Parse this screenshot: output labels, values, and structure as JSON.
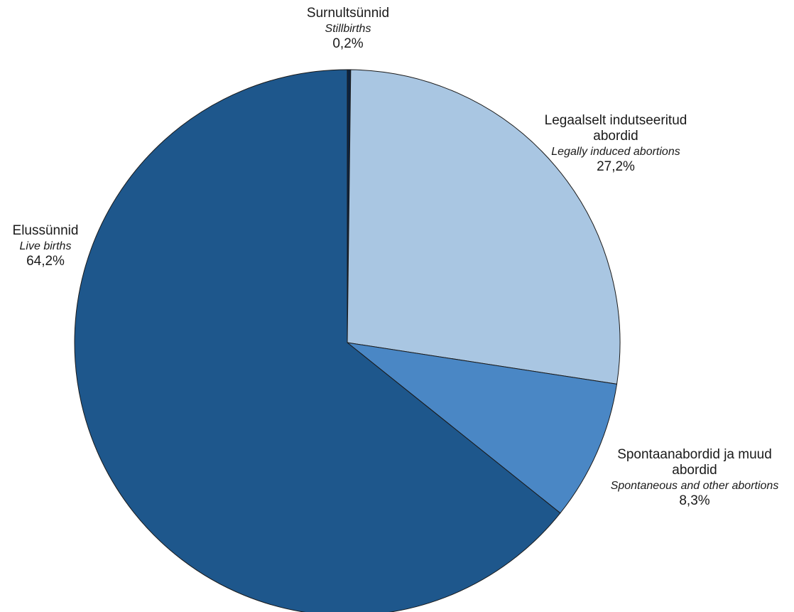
{
  "chart_data": {
    "type": "pie",
    "title": "",
    "slices": [
      {
        "label": "Surnultsünnid",
        "label_en": "Stillbirths",
        "value": 0.2,
        "value_label": "0,2%",
        "color": "#0c2340"
      },
      {
        "label": "Legaalselt indutseeritud abordid",
        "label_en": "Legally induced abortions",
        "value": 27.2,
        "value_label": "27,2%",
        "color": "#a9c6e2"
      },
      {
        "label": "Spontaanabordid ja muud abordid",
        "label_en": "Spontaneous and other abortions",
        "value": 8.3,
        "value_label": "8,3%",
        "color": "#4a87c5"
      },
      {
        "label": "Elussünnid",
        "label_en": "Live births",
        "value": 64.2,
        "value_label": "64,2%",
        "color": "#1e578c"
      }
    ],
    "start_angle": "top",
    "direction": "clockwise",
    "legend": "none"
  }
}
